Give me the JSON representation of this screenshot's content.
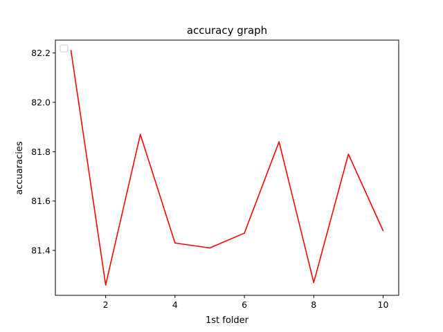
{
  "chart_data": {
    "type": "line",
    "title": "accuracy graph",
    "xlabel": "1st folder",
    "ylabel": "accuaracies",
    "x": [
      1,
      2,
      3,
      4,
      5,
      6,
      7,
      8,
      9,
      10
    ],
    "series": [
      {
        "values": [
          82.21,
          81.26,
          81.87,
          81.43,
          81.41,
          81.47,
          81.84,
          81.27,
          81.79,
          81.48
        ],
        "color": "#ff0000"
      }
    ],
    "xlim": [
      0.55,
      10.45
    ],
    "ylim": [
      81.218,
      82.252
    ],
    "xticks": [
      2,
      4,
      6,
      8,
      10
    ],
    "xtick_labels": [
      "2",
      "4",
      "6",
      "8",
      "10"
    ],
    "yticks": [
      81.4,
      81.6,
      81.8,
      82.0,
      82.2
    ],
    "ytick_labels": [
      "81.4",
      "81.6",
      "81.8",
      "82.0",
      "82.2"
    ],
    "grid": false,
    "legend": {
      "placement": "top-left",
      "entries": []
    }
  }
}
